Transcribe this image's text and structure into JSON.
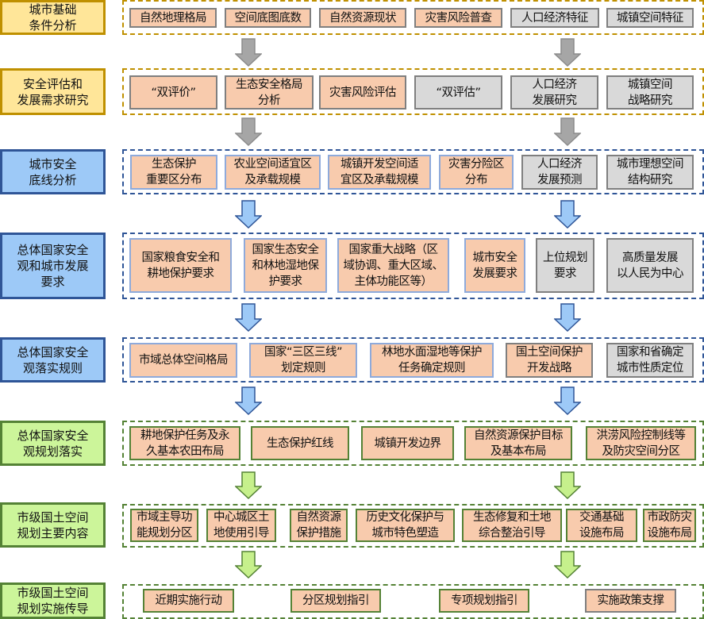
{
  "colors": {
    "yellow_fill": "#ffe699",
    "yellow_border": "#bf9000",
    "blue_fill": "#9dc9f7",
    "blue_border": "#2f5597",
    "green_fill": "#ccf59a",
    "green_border": "#548235",
    "peach_fill": "#f8cbad",
    "gray_fill": "#d9d9d9",
    "gray_border": "#7f7f7f",
    "lightblue_border": "#8eaadb",
    "gray_arrow": "#a6a6a6",
    "blue_arrow": "#9dc9f7",
    "green_arrow": "#c6f08c"
  },
  "rows": [
    {
      "label": "城市基础\n条件分析",
      "theme": "yellow",
      "arrow": "gray",
      "items": [
        {
          "text": "自然地理格局",
          "fill": "peach",
          "border": "gray"
        },
        {
          "text": "空间底图底数",
          "fill": "peach",
          "border": "gray"
        },
        {
          "text": "自然资源现状",
          "fill": "peach",
          "border": "gray"
        },
        {
          "text": "灾害风险普查",
          "fill": "peach",
          "border": "gray"
        },
        {
          "text": "人口经济特征",
          "fill": "gray",
          "border": "gray"
        },
        {
          "text": "城镇空间特征",
          "fill": "gray",
          "border": "gray"
        }
      ]
    },
    {
      "label": "安全评估和\n发展需求研究",
      "theme": "yellow",
      "arrow": "gray",
      "items": [
        {
          "text": "“双评价”",
          "fill": "peach",
          "border": "gray"
        },
        {
          "text": "生态安全格局\n分析",
          "fill": "peach",
          "border": "gray"
        },
        {
          "text": "灾害风险评估",
          "fill": "peach",
          "border": "gray"
        },
        {
          "text": "“双评估”",
          "fill": "gray",
          "border": "gray"
        },
        {
          "text": "人口经济\n发展研究",
          "fill": "gray",
          "border": "gray"
        },
        {
          "text": "城镇空间\n战略研究",
          "fill": "gray",
          "border": "gray"
        }
      ]
    },
    {
      "label": "城市安全\n底线分析",
      "theme": "blue",
      "arrow": "blue",
      "items": [
        {
          "text": "生态保护\n重要区分布",
          "fill": "peach",
          "border": "lightblue"
        },
        {
          "text": "农业空间适宜区\n及承载规模",
          "fill": "peach",
          "border": "lightblue"
        },
        {
          "text": "城镇开发空间适\n宜区及承载规模",
          "fill": "peach",
          "border": "lightblue"
        },
        {
          "text": "灾害分险区\n分布",
          "fill": "peach",
          "border": "lightblue"
        },
        {
          "text": "人口经济\n发展预测",
          "fill": "gray",
          "border": "gray"
        },
        {
          "text": "城市理想空间\n结构研究",
          "fill": "gray",
          "border": "gray"
        }
      ]
    },
    {
      "label": "总体国家安全\n观和城市发展\n要求",
      "theme": "blue",
      "arrow": "blue",
      "items": [
        {
          "text": "国家粮食安全和\n耕地保护要求",
          "fill": "peach",
          "border": "lightblue"
        },
        {
          "text": "国家生态安全\n和林地湿地保\n护要求",
          "fill": "peach",
          "border": "lightblue"
        },
        {
          "text": "国家重大战略（区\n域协调、重大区域、\n主体功能区等）",
          "fill": "peach",
          "border": "lightblue"
        },
        {
          "text": "城市安全\n发展要求",
          "fill": "peach",
          "border": "lightblue"
        },
        {
          "text": "上位规划\n要求",
          "fill": "gray",
          "border": "gray"
        },
        {
          "text": "高质量发展\n以人民为中心",
          "fill": "gray",
          "border": "gray"
        }
      ]
    },
    {
      "label": "总体国家安全\n观落实规则",
      "theme": "blue",
      "arrow": "blue",
      "items": [
        {
          "text": "市域总体空间格局",
          "fill": "peach",
          "border": "lightblue"
        },
        {
          "text": "国家“三区三线”\n划定规则",
          "fill": "peach",
          "border": "lightblue"
        },
        {
          "text": "林地水面湿地等保护\n任务确定规则",
          "fill": "peach",
          "border": "lightblue"
        },
        {
          "text": "国土空间保护\n开发战略",
          "fill": "peach",
          "border": "gray"
        },
        {
          "text": "国家和省确定\n城市性质定位",
          "fill": "gray",
          "border": "gray"
        }
      ]
    },
    {
      "label": "总体国家安全\n观规划落实",
      "theme": "green",
      "arrow": "green",
      "items": [
        {
          "text": "耕地保护任务及永\n久基本农田布局",
          "fill": "peach",
          "border": "green"
        },
        {
          "text": "生态保护红线",
          "fill": "peach",
          "border": "green"
        },
        {
          "text": "城镇开发边界",
          "fill": "peach",
          "border": "green"
        },
        {
          "text": "自然资源保护目标\n及基本布局",
          "fill": "peach",
          "border": "green"
        },
        {
          "text": "洪涝风险控制线等\n及防灾空间分区",
          "fill": "peach",
          "border": "green"
        }
      ]
    },
    {
      "label": "市级国土空间\n规划主要内容",
      "theme": "green",
      "arrow": "green",
      "items": [
        {
          "text": "市域主导功\n能规划分区",
          "fill": "peach",
          "border": "green"
        },
        {
          "text": "中心城区土\n地使用引导",
          "fill": "peach",
          "border": "green"
        },
        {
          "text": "自然资源\n保护措施",
          "fill": "peach",
          "border": "green"
        },
        {
          "text": "历史文化保护与\n城市特色塑造",
          "fill": "peach",
          "border": "green"
        },
        {
          "text": "生态修复和土地\n综合整治引导",
          "fill": "peach",
          "border": "green"
        },
        {
          "text": "交通基础\n设施布局",
          "fill": "peach",
          "border": "green"
        },
        {
          "text": "市政防灾\n设施布局",
          "fill": "peach",
          "border": "green"
        }
      ]
    },
    {
      "label": "市级国土空间\n规划实施传导",
      "theme": "green",
      "arrow": null,
      "items": [
        {
          "text": "近期实施行动",
          "fill": "peach",
          "border": "green"
        },
        {
          "text": "分区规划指引",
          "fill": "peach",
          "border": "green"
        },
        {
          "text": "专项规划指引",
          "fill": "peach",
          "border": "green"
        },
        {
          "text": "实施政策支撑",
          "fill": "peach",
          "border": "gray"
        }
      ]
    }
  ]
}
